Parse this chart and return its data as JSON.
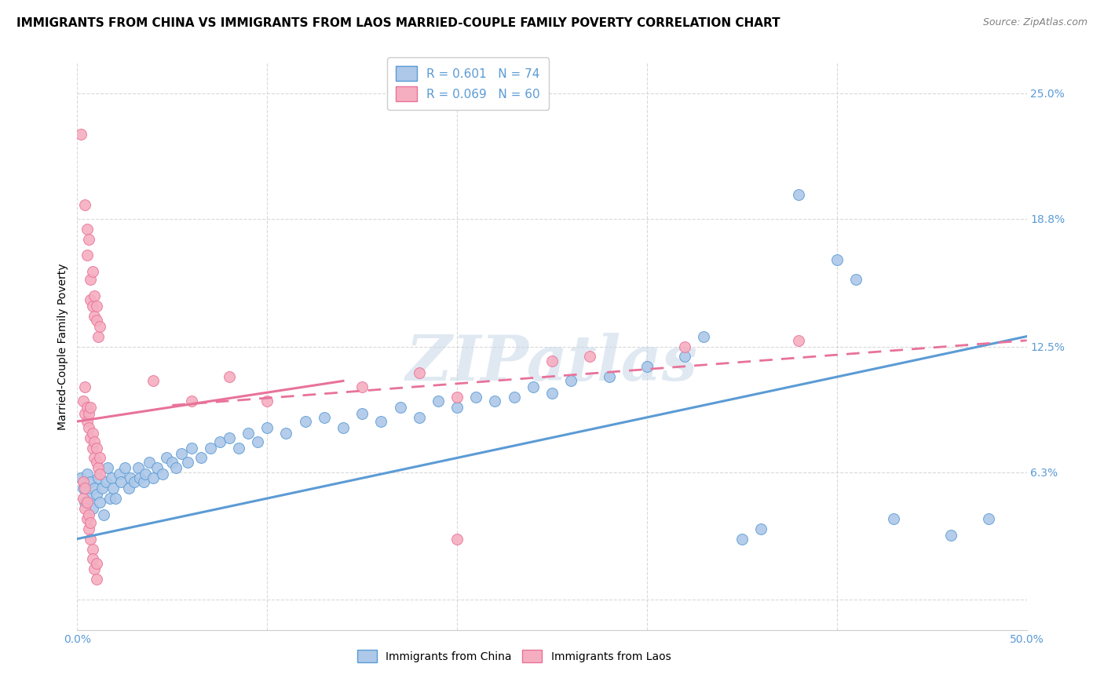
{
  "title": "IMMIGRANTS FROM CHINA VS IMMIGRANTS FROM LAOS MARRIED-COUPLE FAMILY POVERTY CORRELATION CHART",
  "source": "Source: ZipAtlas.com",
  "ylabel": "Married-Couple Family Poverty",
  "xlim": [
    0.0,
    0.5
  ],
  "ylim": [
    -0.015,
    0.265
  ],
  "xticks": [
    0.0,
    0.1,
    0.2,
    0.3,
    0.4,
    0.5
  ],
  "xticklabels": [
    "0.0%",
    "",
    "",
    "",
    "",
    "50.0%"
  ],
  "ytick_positions": [
    0.0,
    0.063,
    0.125,
    0.188,
    0.25
  ],
  "ytick_labels": [
    "",
    "6.3%",
    "12.5%",
    "18.8%",
    "25.0%"
  ],
  "watermark": "ZIPatlas",
  "china_R": "0.601",
  "china_N": "74",
  "laos_R": "0.069",
  "laos_N": "60",
  "china_color": "#adc8e8",
  "laos_color": "#f5aec0",
  "china_line_color": "#5b9bd5",
  "laos_line_color": "#e8729a",
  "china_scatter": [
    [
      0.002,
      0.06
    ],
    [
      0.003,
      0.055
    ],
    [
      0.004,
      0.048
    ],
    [
      0.005,
      0.062
    ],
    [
      0.006,
      0.05
    ],
    [
      0.007,
      0.058
    ],
    [
      0.008,
      0.045
    ],
    [
      0.009,
      0.055
    ],
    [
      0.01,
      0.052
    ],
    [
      0.011,
      0.06
    ],
    [
      0.012,
      0.048
    ],
    [
      0.013,
      0.055
    ],
    [
      0.014,
      0.042
    ],
    [
      0.015,
      0.058
    ],
    [
      0.016,
      0.065
    ],
    [
      0.017,
      0.05
    ],
    [
      0.018,
      0.06
    ],
    [
      0.019,
      0.055
    ],
    [
      0.02,
      0.05
    ],
    [
      0.022,
      0.062
    ],
    [
      0.023,
      0.058
    ],
    [
      0.025,
      0.065
    ],
    [
      0.027,
      0.055
    ],
    [
      0.028,
      0.06
    ],
    [
      0.03,
      0.058
    ],
    [
      0.032,
      0.065
    ],
    [
      0.033,
      0.06
    ],
    [
      0.035,
      0.058
    ],
    [
      0.036,
      0.062
    ],
    [
      0.038,
      0.068
    ],
    [
      0.04,
      0.06
    ],
    [
      0.042,
      0.065
    ],
    [
      0.045,
      0.062
    ],
    [
      0.047,
      0.07
    ],
    [
      0.05,
      0.068
    ],
    [
      0.052,
      0.065
    ],
    [
      0.055,
      0.072
    ],
    [
      0.058,
      0.068
    ],
    [
      0.06,
      0.075
    ],
    [
      0.065,
      0.07
    ],
    [
      0.07,
      0.075
    ],
    [
      0.075,
      0.078
    ],
    [
      0.08,
      0.08
    ],
    [
      0.085,
      0.075
    ],
    [
      0.09,
      0.082
    ],
    [
      0.095,
      0.078
    ],
    [
      0.1,
      0.085
    ],
    [
      0.11,
      0.082
    ],
    [
      0.12,
      0.088
    ],
    [
      0.13,
      0.09
    ],
    [
      0.14,
      0.085
    ],
    [
      0.15,
      0.092
    ],
    [
      0.16,
      0.088
    ],
    [
      0.17,
      0.095
    ],
    [
      0.18,
      0.09
    ],
    [
      0.19,
      0.098
    ],
    [
      0.2,
      0.095
    ],
    [
      0.21,
      0.1
    ],
    [
      0.22,
      0.098
    ],
    [
      0.23,
      0.1
    ],
    [
      0.24,
      0.105
    ],
    [
      0.25,
      0.102
    ],
    [
      0.26,
      0.108
    ],
    [
      0.28,
      0.11
    ],
    [
      0.3,
      0.115
    ],
    [
      0.32,
      0.12
    ],
    [
      0.35,
      0.03
    ],
    [
      0.36,
      0.035
    ],
    [
      0.38,
      0.2
    ],
    [
      0.4,
      0.168
    ],
    [
      0.41,
      0.158
    ],
    [
      0.43,
      0.04
    ],
    [
      0.46,
      0.032
    ],
    [
      0.33,
      0.13
    ],
    [
      0.48,
      0.04
    ]
  ],
  "laos_scatter": [
    [
      0.002,
      0.23
    ],
    [
      0.004,
      0.195
    ],
    [
      0.005,
      0.183
    ],
    [
      0.005,
      0.17
    ],
    [
      0.006,
      0.178
    ],
    [
      0.007,
      0.158
    ],
    [
      0.007,
      0.148
    ],
    [
      0.008,
      0.162
    ],
    [
      0.008,
      0.145
    ],
    [
      0.009,
      0.14
    ],
    [
      0.009,
      0.15
    ],
    [
      0.01,
      0.138
    ],
    [
      0.01,
      0.145
    ],
    [
      0.011,
      0.13
    ],
    [
      0.012,
      0.135
    ],
    [
      0.003,
      0.098
    ],
    [
      0.004,
      0.092
    ],
    [
      0.004,
      0.105
    ],
    [
      0.005,
      0.095
    ],
    [
      0.005,
      0.088
    ],
    [
      0.006,
      0.092
    ],
    [
      0.006,
      0.085
    ],
    [
      0.007,
      0.08
    ],
    [
      0.007,
      0.095
    ],
    [
      0.008,
      0.082
    ],
    [
      0.008,
      0.075
    ],
    [
      0.009,
      0.078
    ],
    [
      0.009,
      0.07
    ],
    [
      0.01,
      0.068
    ],
    [
      0.01,
      0.075
    ],
    [
      0.011,
      0.065
    ],
    [
      0.012,
      0.062
    ],
    [
      0.012,
      0.07
    ],
    [
      0.003,
      0.058
    ],
    [
      0.003,
      0.05
    ],
    [
      0.004,
      0.055
    ],
    [
      0.004,
      0.045
    ],
    [
      0.005,
      0.048
    ],
    [
      0.005,
      0.04
    ],
    [
      0.006,
      0.042
    ],
    [
      0.006,
      0.035
    ],
    [
      0.007,
      0.038
    ],
    [
      0.007,
      0.03
    ],
    [
      0.008,
      0.025
    ],
    [
      0.008,
      0.02
    ],
    [
      0.009,
      0.015
    ],
    [
      0.01,
      0.018
    ],
    [
      0.01,
      0.01
    ],
    [
      0.04,
      0.108
    ],
    [
      0.06,
      0.098
    ],
    [
      0.08,
      0.11
    ],
    [
      0.1,
      0.098
    ],
    [
      0.15,
      0.105
    ],
    [
      0.18,
      0.112
    ],
    [
      0.2,
      0.1
    ],
    [
      0.25,
      0.118
    ],
    [
      0.2,
      0.03
    ],
    [
      0.27,
      0.12
    ],
    [
      0.32,
      0.125
    ],
    [
      0.38,
      0.128
    ]
  ],
  "background_color": "#ffffff",
  "grid_color": "#d0d0d0",
  "title_fontsize": 11,
  "axis_label_fontsize": 10,
  "tick_fontsize": 10,
  "legend_fontsize": 11
}
